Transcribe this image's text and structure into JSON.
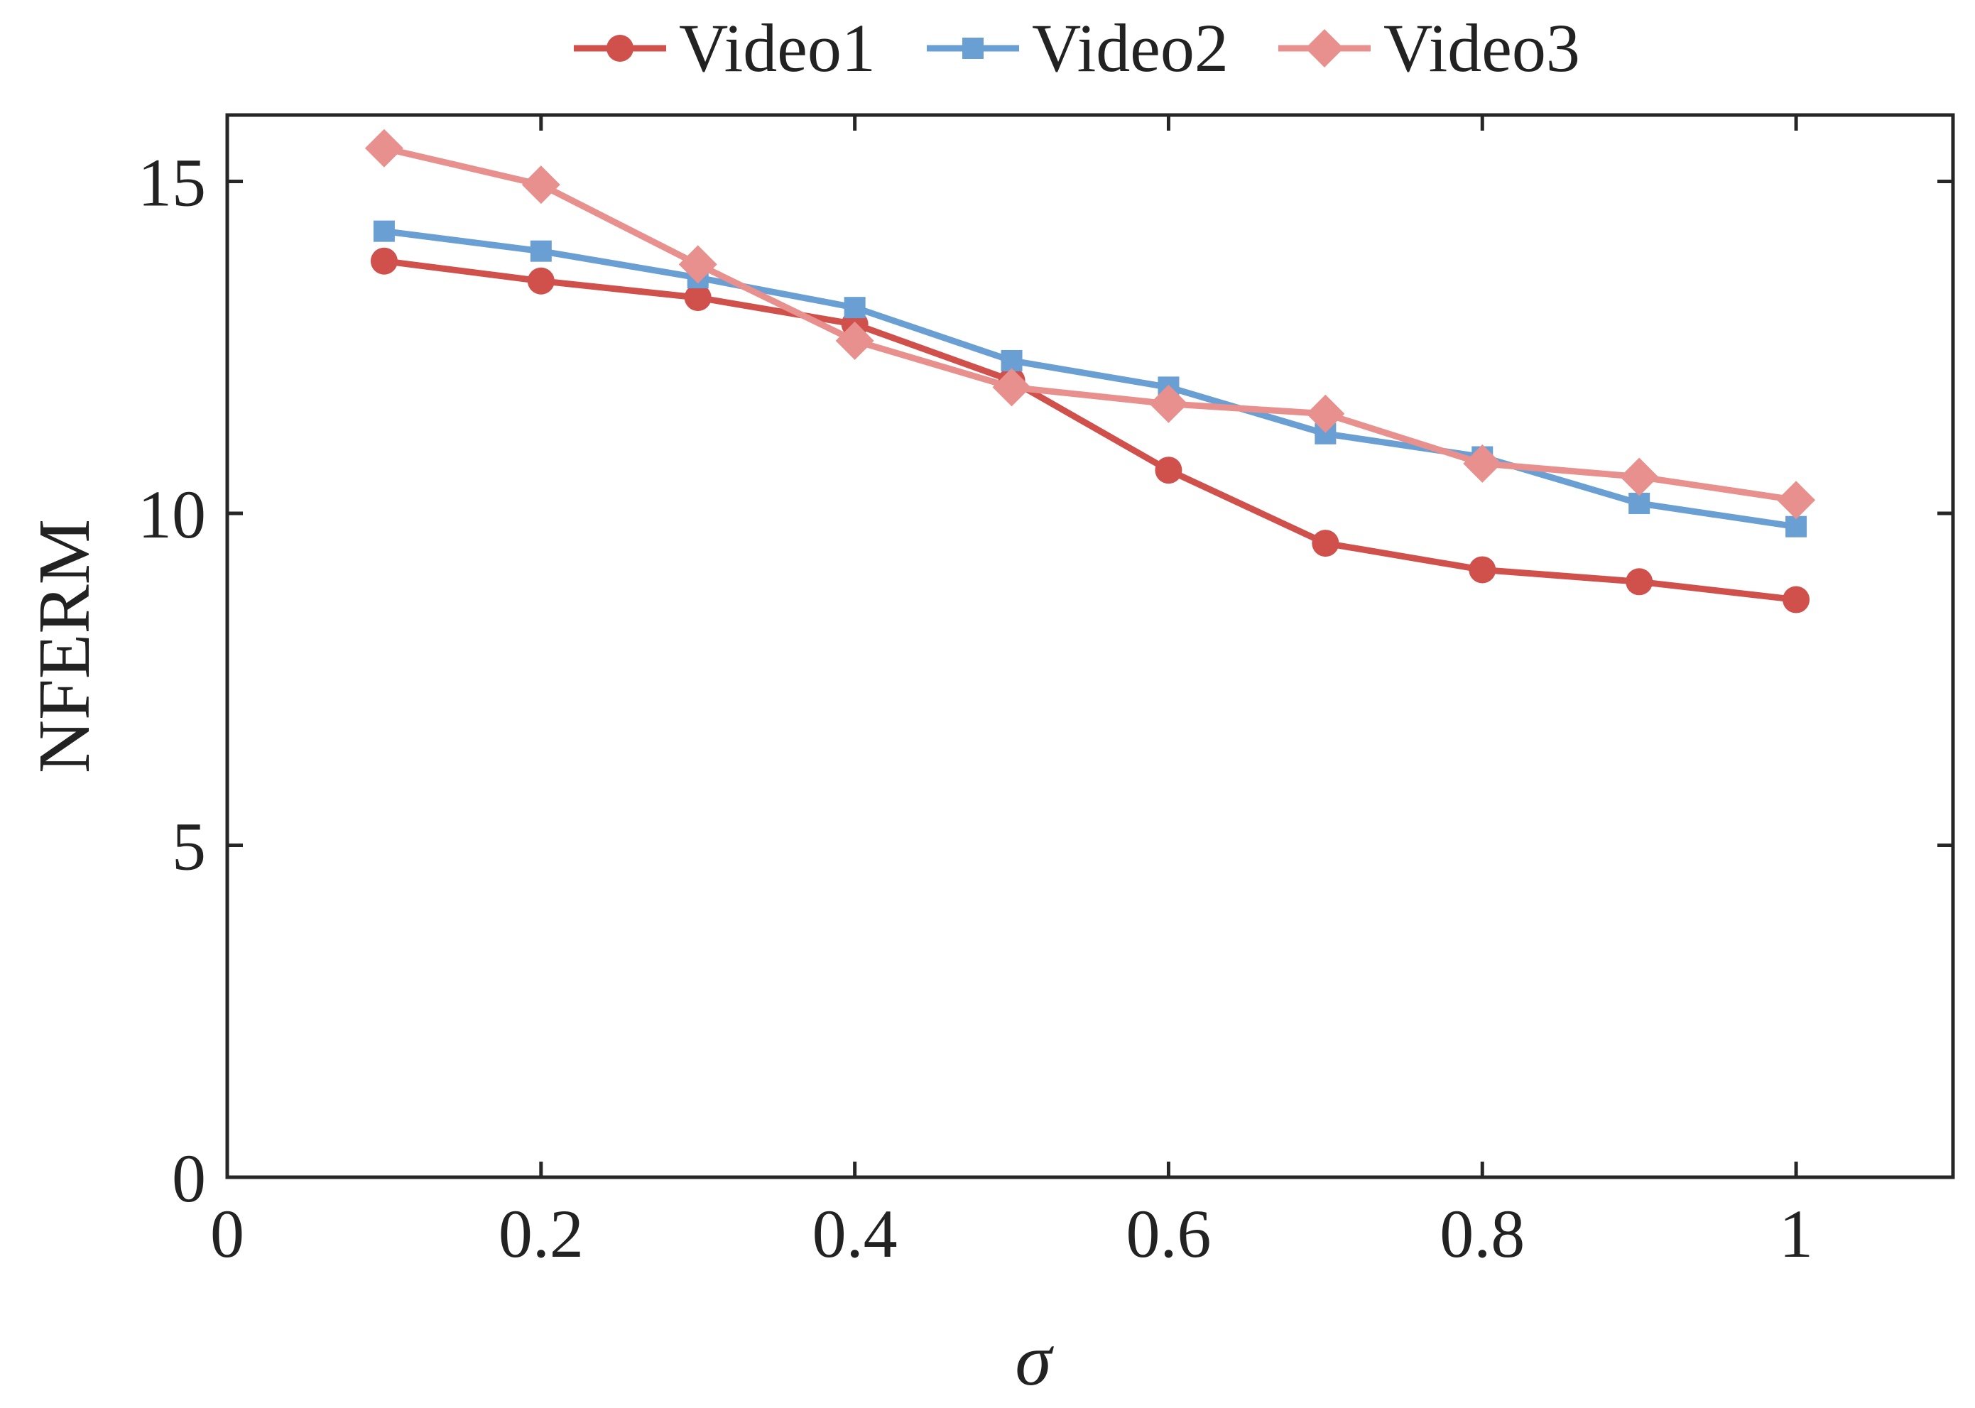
{
  "chart_data": {
    "type": "line",
    "title": "",
    "xlabel": "σ",
    "ylabel": "NFERM",
    "xlim": [
      0,
      1.1
    ],
    "ylim": [
      0,
      16
    ],
    "xticks": [
      0,
      0.2,
      0.4,
      0.6,
      0.8,
      1
    ],
    "xtick_labels": [
      "0",
      "0.2",
      "0.4",
      "0.6",
      "0.8",
      "1"
    ],
    "yticks": [
      0,
      5,
      10,
      15
    ],
    "ytick_labels": [
      "0",
      "5",
      "10",
      "15"
    ],
    "grid": false,
    "legend_position": "top-center",
    "x": [
      0.1,
      0.2,
      0.3,
      0.4,
      0.5,
      0.6,
      0.7,
      0.8,
      0.9,
      1.0
    ],
    "series": [
      {
        "name": "Video1",
        "color": "#d0504c",
        "marker": "circle",
        "values": [
          13.8,
          13.5,
          13.25,
          12.85,
          12.0,
          10.65,
          9.55,
          9.15,
          8.97,
          8.7
        ]
      },
      {
        "name": "Video2",
        "color": "#6a9fd4",
        "marker": "square",
        "values": [
          14.25,
          13.95,
          13.55,
          13.1,
          12.3,
          11.9,
          11.2,
          10.85,
          10.15,
          9.8
        ]
      },
      {
        "name": "Video3",
        "color": "#e8908e",
        "marker": "diamond",
        "values": [
          15.5,
          14.95,
          13.75,
          12.6,
          11.9,
          11.65,
          11.5,
          10.75,
          10.55,
          10.2
        ]
      }
    ]
  }
}
